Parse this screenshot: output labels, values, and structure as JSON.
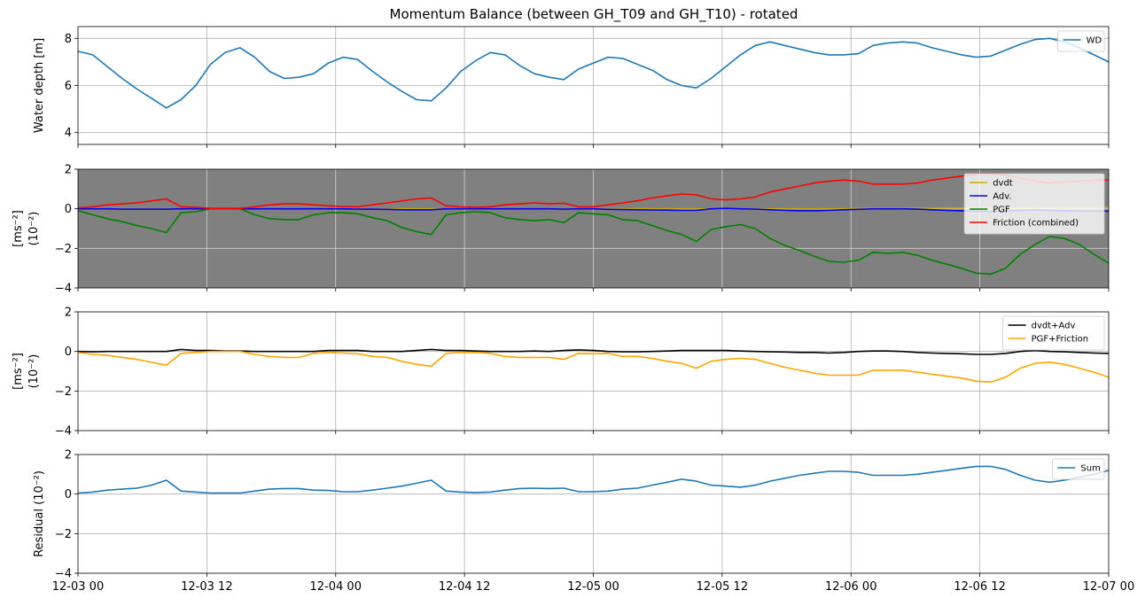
{
  "figure_title": "Momentum Balance (between GH_T09 and GH_T10) - rotated",
  "x_time": {
    "start": "12-03 00",
    "end": "12-07 00",
    "tick_labels": [
      "12-03 00",
      "12-03 12",
      "12-04 00",
      "12-04 12",
      "12-05 00",
      "12-05 12",
      "12-06 00",
      "12-06 12",
      "12-07 00"
    ]
  },
  "chart_data": [
    {
      "type": "line",
      "panel": "water-depth",
      "ylabel": "Water depth [m]",
      "ylim": [
        3.5,
        8.5
      ],
      "yticks": [
        4,
        6,
        8
      ],
      "grid": true,
      "legend_position": "top-right",
      "x_hours": [
        0,
        1,
        2,
        3,
        4,
        5,
        6,
        7,
        8,
        9,
        10,
        11,
        12,
        13,
        14,
        15,
        16,
        17,
        18,
        19,
        20,
        21,
        22,
        23,
        24,
        25,
        26,
        27,
        28,
        29,
        30,
        31,
        32,
        33,
        34,
        35,
        36,
        37,
        38,
        39,
        40,
        41,
        42,
        43,
        44,
        45,
        46,
        47,
        48,
        49,
        50,
        51,
        52,
        53,
        54,
        55,
        56,
        57,
        58,
        59,
        60,
        61,
        62,
        63,
        64,
        65,
        66,
        67,
        68,
        69,
        70,
        71,
        72,
        73,
        74,
        75,
        76,
        77,
        78,
        79,
        80,
        81,
        82,
        83,
        84,
        85,
        86,
        87,
        88,
        89,
        90,
        91,
        92,
        93,
        94,
        95,
        96
      ],
      "series": [
        {
          "name": "WD",
          "color": "#1f77b4",
          "values": [
            7.45,
            7.3,
            6.8,
            6.3,
            5.85,
            5.45,
            5.05,
            5.4,
            6.0,
            6.9,
            7.4,
            7.6,
            7.2,
            6.6,
            6.3,
            6.35,
            6.5,
            6.95,
            7.2,
            7.1,
            6.6,
            6.15,
            5.75,
            5.4,
            5.35,
            5.9,
            6.6,
            7.05,
            7.4,
            7.3,
            6.85,
            6.5,
            6.35,
            6.25,
            6.7,
            6.95,
            7.2,
            7.15,
            6.9,
            6.65,
            6.25,
            6.0,
            5.9,
            6.3,
            6.8,
            7.3,
            7.7,
            7.85,
            7.7,
            7.55,
            7.4,
            7.3,
            7.3,
            7.35,
            7.7,
            7.8,
            7.85,
            7.8,
            7.6,
            7.45,
            7.3,
            7.2,
            7.25,
            7.5,
            7.75,
            7.95,
            8.0,
            7.85,
            7.6,
            7.3,
            7.0
          ]
        }
      ]
    },
    {
      "type": "line",
      "panel": "components",
      "ylabel": "[ms$^{-2}$]",
      "ylabel_display": [
        "[ms⁻²]",
        "(10⁻²)"
      ],
      "ylim": [
        -4,
        2
      ],
      "yticks": [
        -4,
        -2,
        0,
        2
      ],
      "grid": true,
      "background": "#808080",
      "legend_position": "top-right",
      "series": [
        {
          "name": "dvdt",
          "color": "#c9a800",
          "values": [
            0.0,
            0.0,
            0.0,
            0.0,
            0.0,
            0.0,
            0.0,
            0.0,
            0.0,
            0.0,
            0.0,
            0.0,
            0.0,
            0.0,
            0.0,
            0.0,
            0.0,
            0.0,
            0.0,
            0.0,
            0.0,
            0.0,
            0.0,
            0.0,
            0.0,
            0.0,
            0.0,
            0.0,
            0.0,
            0.0,
            0.0,
            0.0,
            0.0,
            0.0,
            0.0,
            0.0,
            0.0,
            0.0,
            0.0,
            0.0,
            0.0,
            0.0,
            0.0,
            0.0,
            0.0,
            0.0,
            0.0,
            0.0,
            0.0,
            0.0,
            0.0,
            0.0,
            0.0,
            0.02,
            0.03,
            0.03,
            0.03,
            0.03,
            0.03,
            0.04,
            0.04,
            0.05,
            0.05,
            0.05,
            0.05,
            0.06,
            0.06,
            0.06,
            0.07,
            0.07,
            0.07
          ]
        },
        {
          "name": "Adv.",
          "color": "#0000ff",
          "values": [
            0.0,
            0.0,
            0.0,
            -0.02,
            -0.02,
            -0.02,
            -0.02,
            0.0,
            0.0,
            0.0,
            0.0,
            0.0,
            0.0,
            0.0,
            0.0,
            0.0,
            0.0,
            0.0,
            0.0,
            -0.02,
            -0.02,
            -0.03,
            -0.05,
            -0.05,
            -0.05,
            0.0,
            0.0,
            0.0,
            0.0,
            0.0,
            0.0,
            0.0,
            0.0,
            -0.02,
            0.0,
            0.0,
            -0.03,
            -0.04,
            -0.05,
            -0.06,
            -0.07,
            -0.08,
            -0.08,
            0.0,
            0.02,
            0.0,
            -0.02,
            -0.05,
            -0.08,
            -0.1,
            -0.1,
            -0.08,
            -0.05,
            -0.03,
            0.0,
            0.0,
            0.0,
            -0.02,
            -0.05,
            -0.08,
            -0.1,
            -0.12,
            -0.15,
            -0.12,
            -0.08,
            -0.05,
            -0.08,
            -0.1,
            -0.12,
            -0.12,
            -0.12
          ]
        },
        {
          "name": "PGF",
          "color": "#008000",
          "values": [
            -0.1,
            -0.3,
            -0.5,
            -0.65,
            -0.85,
            -1.0,
            -1.2,
            -0.2,
            -0.15,
            0.0,
            0.0,
            0.0,
            -0.3,
            -0.5,
            -0.55,
            -0.55,
            -0.3,
            -0.2,
            -0.2,
            -0.25,
            -0.45,
            -0.6,
            -0.95,
            -1.15,
            -1.3,
            -0.3,
            -0.2,
            -0.15,
            -0.2,
            -0.45,
            -0.55,
            -0.6,
            -0.55,
            -0.7,
            -0.2,
            -0.25,
            -0.3,
            -0.55,
            -0.6,
            -0.85,
            -1.1,
            -1.3,
            -1.65,
            -1.05,
            -0.9,
            -0.8,
            -1.0,
            -1.5,
            -1.85,
            -2.1,
            -2.4,
            -2.65,
            -2.7,
            -2.6,
            -2.2,
            -2.25,
            -2.2,
            -2.35,
            -2.6,
            -2.8,
            -3.0,
            -3.25,
            -3.3,
            -3.0,
            -2.3,
            -1.8,
            -1.4,
            -1.5,
            -1.8,
            -2.3,
            -2.75
          ]
        },
        {
          "name": "Friction (combined)",
          "color": "#ff0000",
          "values": [
            0.05,
            0.1,
            0.2,
            0.25,
            0.3,
            0.4,
            0.5,
            0.1,
            0.08,
            0.02,
            0.02,
            0.02,
            0.1,
            0.2,
            0.25,
            0.25,
            0.2,
            0.15,
            0.12,
            0.1,
            0.2,
            0.3,
            0.4,
            0.5,
            0.55,
            0.15,
            0.1,
            0.08,
            0.1,
            0.2,
            0.25,
            0.3,
            0.25,
            0.28,
            0.1,
            0.1,
            0.2,
            0.3,
            0.4,
            0.55,
            0.65,
            0.75,
            0.7,
            0.5,
            0.45,
            0.5,
            0.6,
            0.85,
            1.0,
            1.15,
            1.3,
            1.4,
            1.45,
            1.4,
            1.25,
            1.25,
            1.25,
            1.3,
            1.45,
            1.55,
            1.65,
            1.75,
            1.75,
            1.7,
            1.55,
            1.4,
            1.3,
            1.35,
            1.4,
            1.45,
            1.45
          ]
        }
      ]
    },
    {
      "type": "line",
      "panel": "combined-terms",
      "ylabel": "[ms$^{-2}$]",
      "ylabel_display": [
        "[ms⁻²]",
        "(10⁻²)"
      ],
      "ylim": [
        -4,
        2
      ],
      "yticks": [
        -4,
        -2,
        0,
        2
      ],
      "grid": true,
      "legend_position": "top-right",
      "series": [
        {
          "name": "dvdt+Adv",
          "color": "#000000",
          "values": [
            0.0,
            -0.02,
            0.0,
            0.0,
            0.0,
            0.0,
            0.0,
            0.1,
            0.05,
            0.05,
            0.02,
            0.02,
            0.0,
            0.0,
            0.0,
            0.0,
            0.0,
            0.05,
            0.05,
            0.05,
            0.0,
            0.0,
            0.0,
            0.05,
            0.1,
            0.05,
            0.05,
            0.02,
            0.0,
            0.0,
            0.0,
            0.02,
            0.0,
            0.05,
            0.08,
            0.05,
            0.0,
            -0.02,
            -0.02,
            0.0,
            0.02,
            0.05,
            0.05,
            0.05,
            0.05,
            0.02,
            0.0,
            -0.02,
            -0.03,
            -0.05,
            -0.05,
            -0.08,
            -0.05,
            0.0,
            0.02,
            0.02,
            0.0,
            -0.05,
            -0.08,
            -0.1,
            -0.12,
            -0.15,
            -0.15,
            -0.1,
            0.0,
            0.05,
            0.0,
            -0.02,
            -0.05,
            -0.08,
            -0.1
          ]
        },
        {
          "name": "PGF+Friction",
          "color": "#ffa500",
          "values": [
            -0.05,
            -0.15,
            -0.2,
            -0.3,
            -0.4,
            -0.55,
            -0.7,
            -0.1,
            -0.05,
            0.0,
            0.0,
            0.0,
            -0.15,
            -0.25,
            -0.3,
            -0.3,
            -0.1,
            -0.05,
            -0.08,
            -0.12,
            -0.25,
            -0.3,
            -0.5,
            -0.65,
            -0.75,
            -0.1,
            -0.05,
            -0.05,
            -0.1,
            -0.25,
            -0.3,
            -0.3,
            -0.3,
            -0.4,
            -0.1,
            -0.12,
            -0.1,
            -0.25,
            -0.25,
            -0.35,
            -0.5,
            -0.6,
            -0.85,
            -0.5,
            -0.4,
            -0.35,
            -0.4,
            -0.6,
            -0.8,
            -0.95,
            -1.1,
            -1.2,
            -1.2,
            -1.2,
            -0.95,
            -0.95,
            -0.95,
            -1.05,
            -1.15,
            -1.25,
            -1.35,
            -1.5,
            -1.55,
            -1.3,
            -0.85,
            -0.6,
            -0.55,
            -0.65,
            -0.85,
            -1.05,
            -1.3
          ]
        }
      ]
    },
    {
      "type": "line",
      "panel": "residual",
      "ylabel": "Residual (10$^{-2}$)",
      "ylabel_display": [
        "Residual (10⁻²)"
      ],
      "ylim": [
        -4,
        2
      ],
      "yticks": [
        -4,
        -2,
        0,
        2
      ],
      "grid": true,
      "legend_position": "top-right",
      "series": [
        {
          "name": "Sum",
          "color": "#1f77b4",
          "values": [
            0.05,
            0.1,
            0.2,
            0.25,
            0.3,
            0.45,
            0.7,
            0.15,
            0.1,
            0.05,
            0.05,
            0.05,
            0.15,
            0.25,
            0.28,
            0.28,
            0.2,
            0.18,
            0.12,
            0.12,
            0.2,
            0.3,
            0.4,
            0.55,
            0.7,
            0.15,
            0.1,
            0.08,
            0.1,
            0.2,
            0.28,
            0.3,
            0.28,
            0.3,
            0.12,
            0.12,
            0.15,
            0.25,
            0.3,
            0.45,
            0.6,
            0.75,
            0.65,
            0.45,
            0.4,
            0.35,
            0.45,
            0.65,
            0.8,
            0.95,
            1.05,
            1.15,
            1.15,
            1.1,
            0.95,
            0.95,
            0.95,
            1.0,
            1.1,
            1.2,
            1.3,
            1.4,
            1.4,
            1.25,
            0.95,
            0.7,
            0.6,
            0.7,
            0.85,
            1.0,
            1.2
          ]
        }
      ]
    }
  ]
}
